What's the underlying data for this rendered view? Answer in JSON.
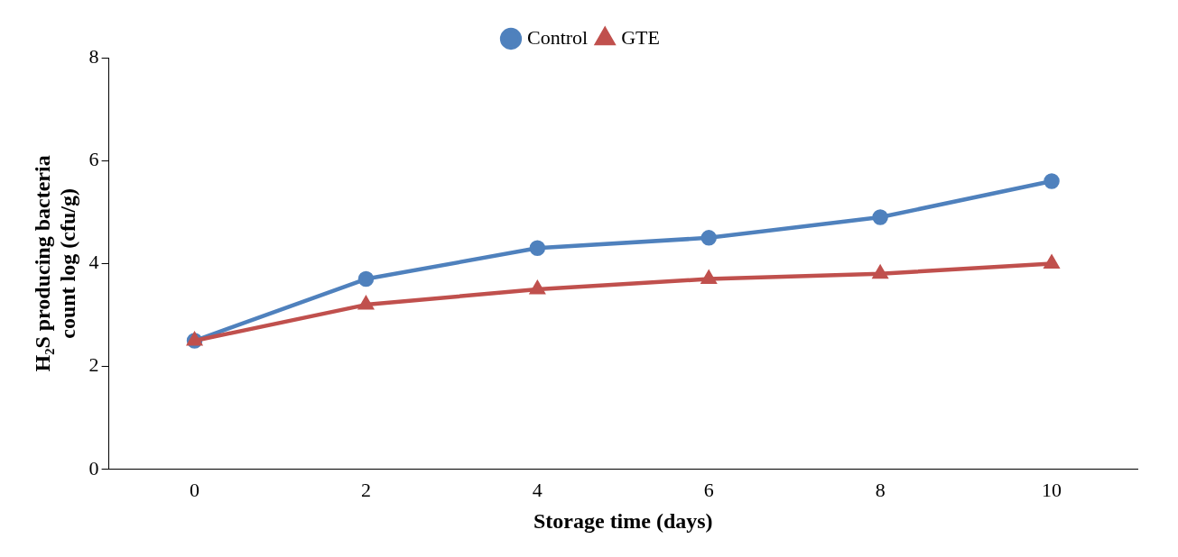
{
  "chart_data": {
    "type": "line",
    "xlabel": "Storage time (days)",
    "ylabel": "H₂S producing bacteria count log (cfu/g)",
    "categories": [
      "0",
      "2",
      "4",
      "6",
      "8",
      "10"
    ],
    "series": [
      {
        "name": "Control",
        "color": "#4f81bd",
        "marker": "circle",
        "values": [
          2.5,
          3.7,
          4.3,
          4.5,
          4.9,
          5.6
        ]
      },
      {
        "name": "GTE",
        "color": "#c0504d",
        "marker": "triangle",
        "values": [
          2.5,
          3.2,
          3.5,
          3.7,
          3.8,
          4.0
        ]
      }
    ],
    "ylim": [
      0,
      8
    ],
    "yticks": [
      0,
      2,
      4,
      6,
      8
    ],
    "grid": false,
    "legend": "top"
  }
}
